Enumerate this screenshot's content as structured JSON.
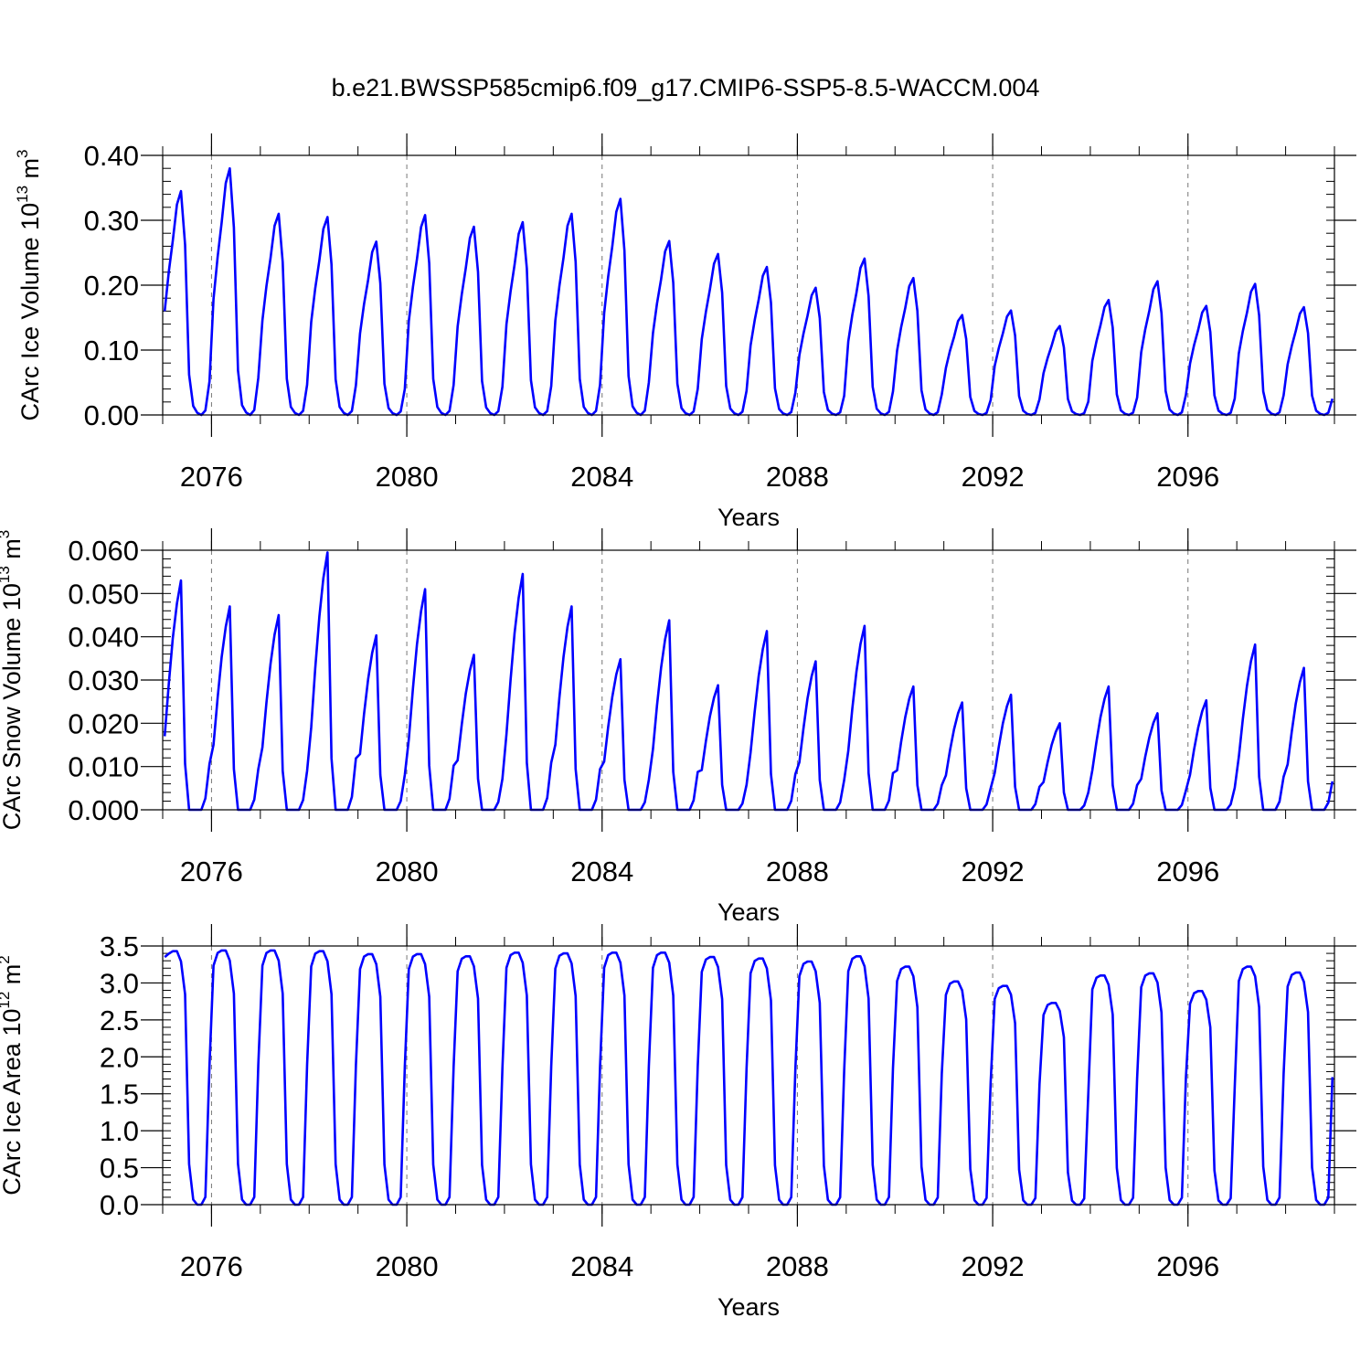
{
  "title": "b.e21.BWSSP585cmip6.f09_g17.CMIP6-SSP5-8.5-WACCM.004",
  "line_color": "#0000ff",
  "chart_data": [
    {
      "type": "line",
      "ylabel_main": "CArc Ice Volume 10",
      "ylabel_exp": "13",
      "ylabel_unit": " m",
      "ylabel_unit_exp": "3",
      "xlabel": "Years",
      "xlim": [
        2075,
        2099
      ],
      "ylim": [
        0,
        0.4
      ],
      "yticks": [
        "0.00",
        "0.10",
        "0.20",
        "0.30",
        "0.40"
      ],
      "yticks_values": [
        0,
        0.1,
        0.2,
        0.3,
        0.4
      ],
      "xticks": [
        "2076",
        "2080",
        "2084",
        "2088",
        "2092",
        "2096"
      ],
      "xticks_values": [
        2076,
        2080,
        2084,
        2088,
        2092,
        2096
      ],
      "grid": "dashed vertical at major x ticks",
      "cycle": {
        "start_year": 2075,
        "peaks": [
          0.345,
          0.38,
          0.31,
          0.305,
          0.267,
          0.308,
          0.29,
          0.297,
          0.31,
          0.333,
          0.268,
          0.248,
          0.228,
          0.196,
          0.241,
          0.211,
          0.154,
          0.161,
          0.137,
          0.177,
          0.206,
          0.168,
          0.202,
          0.166
        ],
        "pattern": [
          0.47,
          0.64,
          0.78,
          0.94,
          1.0,
          0.76,
          0.18,
          0.04,
          0.01,
          0.0,
          0.02,
          0.15
        ],
        "start_value": 0.16
      }
    },
    {
      "type": "line",
      "ylabel_main": "CArc Snow Volume 10",
      "ylabel_exp": "13",
      "ylabel_unit": " m",
      "ylabel_unit_exp": "3",
      "xlabel": "Years",
      "xlim": [
        2075,
        2099
      ],
      "ylim": [
        0,
        0.06
      ],
      "yticks": [
        "0.000",
        "0.010",
        "0.020",
        "0.030",
        "0.040",
        "0.050",
        "0.060"
      ],
      "yticks_values": [
        0,
        0.01,
        0.02,
        0.03,
        0.04,
        0.05,
        0.06
      ],
      "xticks": [
        "2076",
        "2080",
        "2084",
        "2088",
        "2092",
        "2096"
      ],
      "xticks_values": [
        2076,
        2080,
        2084,
        2088,
        2092,
        2096
      ],
      "grid": "dashed vertical at major x ticks",
      "cycle": {
        "start_year": 2075,
        "peaks": [
          0.053,
          0.047,
          0.045,
          0.0595,
          0.0403,
          0.051,
          0.0358,
          0.0545,
          0.047,
          0.0348,
          0.0438,
          0.0288,
          0.0413,
          0.0343,
          0.0425,
          0.0285,
          0.0248,
          0.0266,
          0.02,
          0.0285,
          0.0223,
          0.0253,
          0.0382,
          0.0328
        ],
        "pattern": [
          0.32,
          0.55,
          0.75,
          0.9,
          1.0,
          0.2,
          0.0,
          0.0,
          0.0,
          0.0,
          0.05,
          0.2
        ],
        "start_value": 0.017
      }
    },
    {
      "type": "line",
      "ylabel_main": "CArc Ice Area 10",
      "ylabel_exp": "12",
      "ylabel_unit": " m",
      "ylabel_unit_exp": "2",
      "xlabel": "Years",
      "xlim": [
        2075,
        2099
      ],
      "ylim": [
        0,
        3.5
      ],
      "yticks": [
        "0.0",
        "0.5",
        "1.0",
        "1.5",
        "2.0",
        "2.5",
        "3.0",
        "3.5"
      ],
      "yticks_values": [
        0,
        0.5,
        1.0,
        1.5,
        2.0,
        2.5,
        3.0,
        3.5
      ],
      "xticks": [
        "2076",
        "2080",
        "2084",
        "2088",
        "2092",
        "2096"
      ],
      "xticks_values": [
        2076,
        2080,
        2084,
        2088,
        2092,
        2096
      ],
      "grid": "dashed vertical at major x ticks",
      "cycle": {
        "start_year": 2075,
        "peaks": [
          3.43,
          3.44,
          3.44,
          3.43,
          3.39,
          3.39,
          3.36,
          3.41,
          3.4,
          3.41,
          3.41,
          3.35,
          3.33,
          3.29,
          3.36,
          3.22,
          3.02,
          2.96,
          2.73,
          3.1,
          3.13,
          2.89,
          3.22,
          3.14
        ],
        "pattern": [
          0.94,
          0.99,
          1.0,
          1.0,
          0.96,
          0.83,
          0.16,
          0.02,
          0.0,
          0.0,
          0.03,
          0.55
        ],
        "start_value": 3.35
      }
    }
  ]
}
